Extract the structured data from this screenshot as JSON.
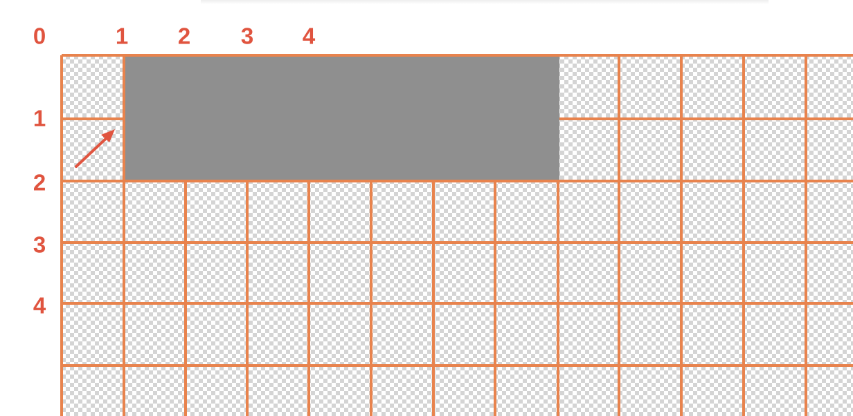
{
  "origin_label": "0",
  "column_labels": [
    "1",
    "2",
    "3",
    "4"
  ],
  "row_labels": [
    "1",
    "2",
    "3",
    "4"
  ],
  "colors": {
    "label": "#e0543f",
    "grid_line": "#e8834d",
    "selection_fill": "#8f8f8f",
    "arrow": "#e0543f",
    "checker_light": "#ffffff",
    "checker_dark": "#d4d4d4"
  },
  "background": "transparent-checkerboard"
}
